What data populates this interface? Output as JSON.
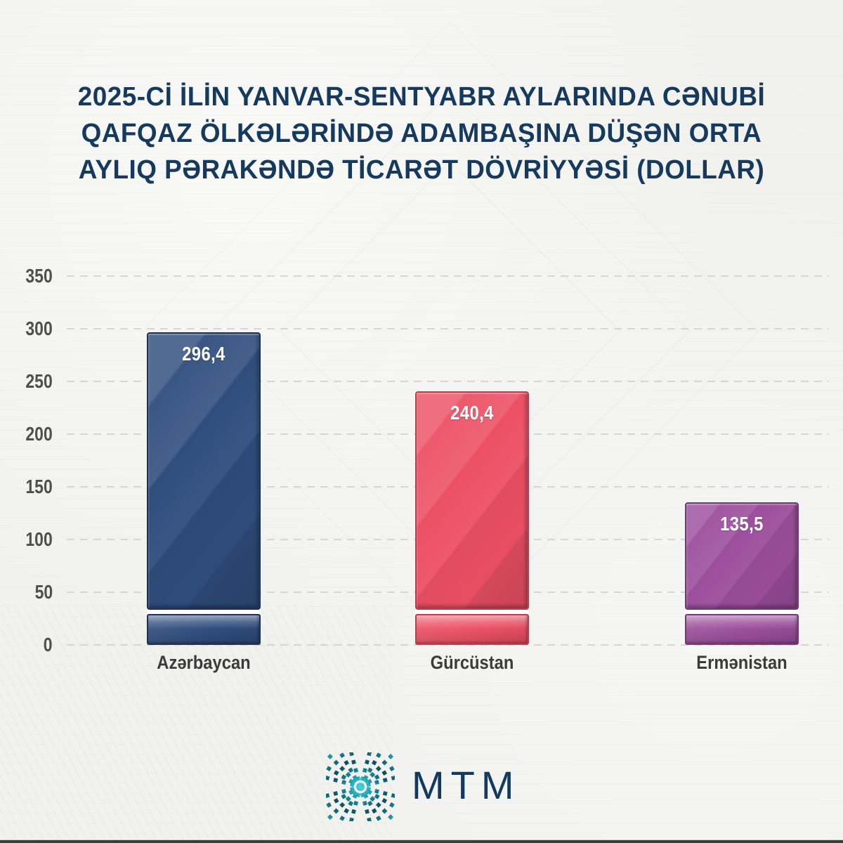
{
  "title": {
    "lines": [
      "2025-Cİ İLİN YANVAR-SENTYABR AYLARINDA CƏNUBİ",
      "QAFQAZ ÖLKƏLƏRİNDƏ ADAMBAŞINA DÜŞƏN ORTA",
      "AYLIQ PƏRAKƏNDƏ TİCARƏT DÖVRİYYƏSİ (DOLLAR)"
    ],
    "full": "2025-Cİ İLİN YANVAR-SENTYABR AYLARINDA CƏNUBİ QAFQAZ ÖLKƏLƏRİNDƏ ADAMBAŞINA DÜŞƏN ORTA AYLIQ PƏRAKƏNDƏ TİCARƏT DÖVRİYYƏSİ (DOLLAR)"
  },
  "chart_data": {
    "type": "bar",
    "title": "2025-Cİ İLİN YANVAR-SENTYABR AYLARINDA CƏNUBİ QAFQAZ ÖLKƏLƏRİNDƏ ADAMBAŞINA DÜŞƏN ORTA AYLIQ PƏRAKƏNDƏ TİCARƏT DÖVRİYYƏSİ (DOLLAR)",
    "categories": [
      "Azərbaycan",
      "Gürcüstan",
      "Ermənistan"
    ],
    "values": [
      296.4,
      240.4,
      135.5
    ],
    "value_labels": [
      "296,4",
      "240,4",
      "135,5"
    ],
    "bar_colors": [
      "#2f4d7d",
      "#ec5065",
      "#9c4e9c"
    ],
    "bar_border_colors": [
      "#1d3154",
      "#c23c50",
      "#753a74"
    ],
    "xlabel": "",
    "ylabel": "",
    "ylim": [
      0,
      350
    ],
    "y_ticks": [
      0,
      50,
      100,
      150,
      200,
      250,
      300,
      350
    ],
    "grid": "horizontal dashed",
    "legend": "none"
  },
  "logo": {
    "text": "MTM",
    "icon": "starburst-dashes-icon",
    "icon_color_dark": "#0c4a57",
    "icon_color_light": "#49d6d9",
    "text_color": "#113a5e"
  },
  "colors": {
    "background": "#f1f1ee",
    "title": "#163a5e",
    "tick_label": "#4f4f4f",
    "category_label": "#3b3b3b",
    "value_label": "#ffffff",
    "gridline": "#d7d6d2",
    "bottom_strip": "#3d3d3d"
  }
}
